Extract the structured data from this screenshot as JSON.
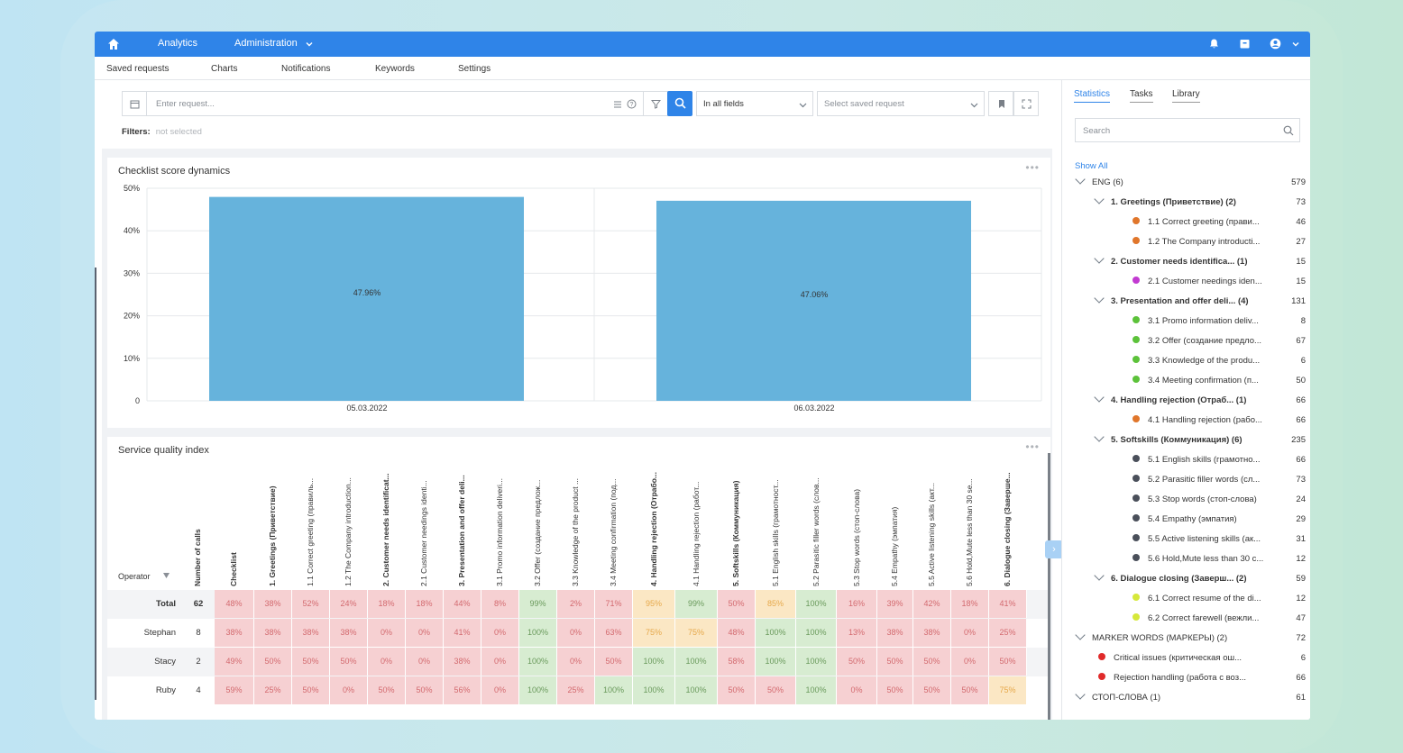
{
  "topbar": {
    "nav": [
      {
        "label": "Analytics"
      },
      {
        "label": "Administration"
      }
    ]
  },
  "subnav": [
    "Saved requests",
    "Charts",
    "Notifications",
    "Keywords",
    "Settings"
  ],
  "search": {
    "placeholder": "Enter request...",
    "field_select": "In all fields",
    "saved_select": "Select saved request",
    "filters_label": "Filters:",
    "filters_value": "not selected"
  },
  "chart": {
    "title": "Checklist score dynamics"
  },
  "chart_data": {
    "type": "bar",
    "categories": [
      "05.03.2022",
      "06.03.2022"
    ],
    "values": [
      47.96,
      47.06
    ],
    "value_labels": [
      "47.96%",
      "47.06%"
    ],
    "yticks": [
      "50%",
      "40%",
      "30%",
      "20%",
      "10%",
      "0"
    ],
    "ylim": [
      0,
      50
    ],
    "bar_color": "#66b3dc",
    "grid": true
  },
  "sqi": {
    "title": "Service quality index",
    "operator_label": "Operator",
    "columns": [
      "Number of calls",
      "Checklist",
      "1. Greetings (Приветствие)",
      "1.1 Correct greeting (правиль...",
      "1.2 The Company introduction...",
      "2. Customer needs identificat...",
      "2.1 Customer needings identi...",
      "3. Presentation and offer deli...",
      "3.1 Promo information deliveri...",
      "3.2 Offer (создание предлож...",
      "3.3 Knowledge of the product ...",
      "3.4 Meeting confirmation (под...",
      "4. Handling rejection (Отрабо...",
      "4.1 Handling rejection (работ...",
      "5. Softskills (Коммуникация)",
      "5.1 English skills (грамотност...",
      "5.2 Parasitic filler words (слов...",
      "5.3 Stop words (стоп-слова)",
      "5.4 Empathy (эмпатия)",
      "5.5 Active listening skills (акт...",
      "5.6 Hold,Mute less than 30 se...",
      "6. Dialogue closing (Заверше..."
    ],
    "bold_cols": [
      0,
      1,
      2,
      5,
      7,
      12,
      14,
      21
    ],
    "rows": [
      {
        "name": "Total",
        "calls": "62",
        "vals": [
          "48%",
          "38%",
          "52%",
          "24%",
          "18%",
          "18%",
          "44%",
          "8%",
          "99%",
          "2%",
          "71%",
          "95%",
          "99%",
          "50%",
          "85%",
          "100%",
          "16%",
          "39%",
          "42%",
          "18%",
          "41%"
        ]
      },
      {
        "name": "Stephan",
        "calls": "8",
        "vals": [
          "38%",
          "38%",
          "38%",
          "38%",
          "0%",
          "0%",
          "41%",
          "0%",
          "100%",
          "0%",
          "63%",
          "75%",
          "75%",
          "48%",
          "100%",
          "100%",
          "13%",
          "38%",
          "38%",
          "0%",
          "25%"
        ]
      },
      {
        "name": "Stacy",
        "calls": "2",
        "vals": [
          "49%",
          "50%",
          "50%",
          "50%",
          "0%",
          "0%",
          "38%",
          "0%",
          "100%",
          "0%",
          "50%",
          "100%",
          "100%",
          "58%",
          "100%",
          "100%",
          "50%",
          "50%",
          "50%",
          "0%",
          "50%"
        ]
      },
      {
        "name": "Ruby",
        "calls": "4",
        "vals": [
          "59%",
          "25%",
          "50%",
          "0%",
          "50%",
          "50%",
          "56%",
          "0%",
          "100%",
          "25%",
          "100%",
          "100%",
          "100%",
          "50%",
          "50%",
          "100%",
          "0%",
          "50%",
          "50%",
          "50%",
          "75%"
        ]
      }
    ]
  },
  "right": {
    "tabs": [
      "Statistics",
      "Tasks",
      "Library"
    ],
    "search_placeholder": "Search",
    "show_all": "Show All",
    "tree": [
      {
        "level": 0,
        "label": "ENG (6)",
        "count": "579",
        "type": "group"
      },
      {
        "level": 1,
        "label": "1. Greetings (Приветствие) (2)",
        "count": "73",
        "type": "group",
        "bold": true
      },
      {
        "level": 2,
        "label": "1.1 Correct greeting (прави...",
        "count": "46",
        "color": "#e0762b"
      },
      {
        "level": 2,
        "label": "1.2 The Company introducti...",
        "count": "27",
        "color": "#e0762b"
      },
      {
        "level": 1,
        "label": "2. Customer needs identifica...  (1)",
        "count": "15",
        "type": "group",
        "bold": true
      },
      {
        "level": 2,
        "label": "2.1 Customer needings iden...",
        "count": "15",
        "color": "#c23ad1"
      },
      {
        "level": 1,
        "label": "3. Presentation and offer deli... (4)",
        "count": "131",
        "type": "group",
        "bold": true
      },
      {
        "level": 2,
        "label": "3.1 Promo information deliv...",
        "count": "8",
        "color": "#5cc23a"
      },
      {
        "level": 2,
        "label": "3.2 Offer (создание предло...",
        "count": "67",
        "color": "#5cc23a"
      },
      {
        "level": 2,
        "label": "3.3 Knowledge of the produ...",
        "count": "6",
        "color": "#5cc23a"
      },
      {
        "level": 2,
        "label": "3.4 Meeting confirmation (п...",
        "count": "50",
        "color": "#5cc23a"
      },
      {
        "level": 1,
        "label": "4. Handling rejection (Отраб...  (1)",
        "count": "66",
        "type": "group",
        "bold": true
      },
      {
        "level": 2,
        "label": "4.1 Handling rejection (рабо...",
        "count": "66",
        "color": "#e0762b"
      },
      {
        "level": 1,
        "label": "5. Softskills (Коммуникация) (6)",
        "count": "235",
        "type": "group",
        "bold": true
      },
      {
        "level": 2,
        "label": "5.1 English skills (грамотно...",
        "count": "66",
        "color": "#4a4f5a"
      },
      {
        "level": 2,
        "label": "5.2 Parasitic filler words (сл...",
        "count": "73",
        "color": "#4a4f5a"
      },
      {
        "level": 2,
        "label": "5.3 Stop words (стоп-слова)",
        "count": "24",
        "color": "#4a4f5a"
      },
      {
        "level": 2,
        "label": "5.4 Empathy (эмпатия)",
        "count": "29",
        "color": "#4a4f5a"
      },
      {
        "level": 2,
        "label": "5.5 Active listening skills (ак...",
        "count": "31",
        "color": "#4a4f5a"
      },
      {
        "level": 2,
        "label": "5.6 Hold,Mute less than 30 с...",
        "count": "12",
        "color": "#4a4f5a"
      },
      {
        "level": 1,
        "label": "6. Dialogue closing (Заверш...  (2)",
        "count": "59",
        "type": "group",
        "bold": true
      },
      {
        "level": 2,
        "label": "6.1 Correct resume of the di...",
        "count": "12",
        "color": "#d6e83a"
      },
      {
        "level": 2,
        "label": "6.2 Correct farewell (вежли...",
        "count": "47",
        "color": "#d6e83a"
      },
      {
        "level": 0,
        "label": "MARKER WORDS (МАРКЕРЫ) (2)",
        "count": "72",
        "type": "group"
      },
      {
        "level": 1,
        "label": "Critical issues (критическая ош...",
        "count": "6",
        "color": "#e02a2a"
      },
      {
        "level": 1,
        "label": "Rejection handling (работа с воз...",
        "count": "66",
        "color": "#e02a2a"
      },
      {
        "level": 0,
        "label": "СТОП-СЛОВА (1)",
        "count": "61",
        "type": "group"
      }
    ]
  }
}
